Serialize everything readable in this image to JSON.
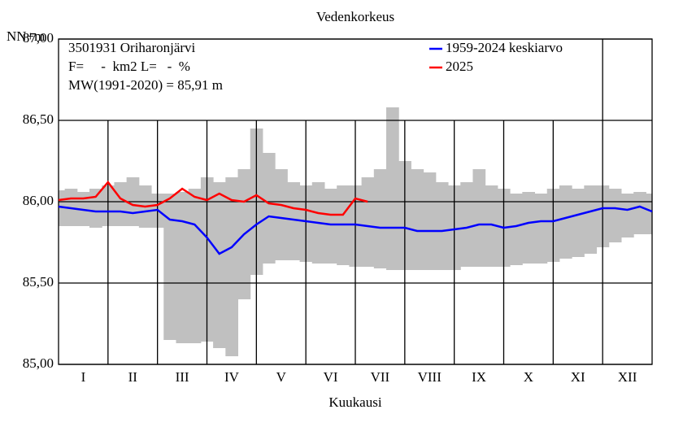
{
  "chart_data": {
    "type": "line",
    "title": "Vedenkorkeus",
    "ylabel": "NN+m",
    "xlabel": "Kuukausi",
    "info": [
      "3501931 Oriharonjärvi",
      "F=     -  km2 L=   -  %",
      "MW(1991-2020) = 85,91 m"
    ],
    "xlim": [
      0,
      12
    ],
    "xticks": [
      {
        "value": 0.5,
        "label": "I"
      },
      {
        "value": 1.5,
        "label": "II"
      },
      {
        "value": 2.5,
        "label": "III"
      },
      {
        "value": 3.5,
        "label": "IV"
      },
      {
        "value": 4.5,
        "label": "V"
      },
      {
        "value": 5.5,
        "label": "VI"
      },
      {
        "value": 6.5,
        "label": "VII"
      },
      {
        "value": 7.5,
        "label": "VIII"
      },
      {
        "value": 8.5,
        "label": "IX"
      },
      {
        "value": 9.5,
        "label": "X"
      },
      {
        "value": 10.5,
        "label": "XI"
      },
      {
        "value": 11.5,
        "label": "XII"
      }
    ],
    "ylim": [
      85,
      87
    ],
    "yticks": [
      {
        "value": 85,
        "label": "85,00"
      },
      {
        "value": 85.5,
        "label": "85,50"
      },
      {
        "value": 86,
        "label": "86,00"
      },
      {
        "value": 86.5,
        "label": "86,50"
      },
      {
        "value": 87,
        "label": "87,00"
      }
    ],
    "grid": true,
    "legend": "upper right",
    "x": [
      0,
      0.25,
      0.5,
      0.75,
      1,
      1.25,
      1.5,
      1.75,
      2,
      2.25,
      2.5,
      2.75,
      3,
      3.25,
      3.5,
      3.75,
      4,
      4.25,
      4.5,
      4.75,
      5,
      5.25,
      5.5,
      5.75,
      6,
      6.25,
      6.5,
      6.75,
      7,
      7.25,
      7.5,
      7.75,
      8,
      8.25,
      8.5,
      8.75,
      9,
      9.25,
      9.5,
      9.75,
      10,
      10.25,
      10.5,
      10.75,
      11,
      11.25,
      11.5,
      11.75,
      12
    ],
    "range": {
      "color": "#c0c0c0",
      "high": [
        86.07,
        86.08,
        86.06,
        86.08,
        86.1,
        86.12,
        86.15,
        86.1,
        86.05,
        86.05,
        86.06,
        86.08,
        86.15,
        86.12,
        86.15,
        86.2,
        86.45,
        86.3,
        86.2,
        86.12,
        86.1,
        86.12,
        86.08,
        86.1,
        86.1,
        86.15,
        86.2,
        86.58,
        86.25,
        86.2,
        86.18,
        86.12,
        86.1,
        86.12,
        86.2,
        86.1,
        86.08,
        86.05,
        86.06,
        86.05,
        86.08,
        86.1,
        86.08,
        86.1,
        86.1,
        86.08,
        86.05,
        86.06,
        86.05
      ],
      "low": [
        85.85,
        85.85,
        85.85,
        85.84,
        85.85,
        85.85,
        85.85,
        85.84,
        85.84,
        85.15,
        85.13,
        85.13,
        85.14,
        85.1,
        85.05,
        85.4,
        85.55,
        85.62,
        85.64,
        85.64,
        85.63,
        85.62,
        85.62,
        85.61,
        85.6,
        85.6,
        85.59,
        85.58,
        85.58,
        85.58,
        85.58,
        85.58,
        85.58,
        85.6,
        85.6,
        85.6,
        85.6,
        85.61,
        85.62,
        85.62,
        85.63,
        85.65,
        85.66,
        85.68,
        85.72,
        85.75,
        85.78,
        85.8,
        85.8
      ]
    },
    "series": [
      {
        "name": "1959-2024 keskiarvo",
        "color": "#0000ff",
        "values": [
          85.97,
          85.96,
          85.95,
          85.94,
          85.94,
          85.94,
          85.93,
          85.94,
          85.95,
          85.89,
          85.88,
          85.86,
          85.78,
          85.68,
          85.72,
          85.8,
          85.86,
          85.91,
          85.9,
          85.89,
          85.88,
          85.87,
          85.86,
          85.86,
          85.86,
          85.85,
          85.84,
          85.84,
          85.84,
          85.82,
          85.82,
          85.82,
          85.83,
          85.84,
          85.86,
          85.86,
          85.84,
          85.85,
          85.87,
          85.88,
          85.88,
          85.9,
          85.92,
          85.94,
          85.96,
          85.96,
          85.95,
          85.97,
          85.94
        ]
      },
      {
        "name": "2025",
        "color": "#ff0000",
        "values": [
          86.01,
          86.02,
          86.02,
          86.03,
          86.12,
          86.02,
          85.98,
          85.97,
          85.98,
          86.02,
          86.08,
          86.03,
          86.01,
          86.05,
          86.01,
          86.0,
          86.04,
          85.99,
          85.98,
          85.96,
          85.95,
          85.93,
          85.92,
          85.92,
          86.02,
          86.0,
          null,
          null,
          null,
          null,
          null,
          null,
          null,
          null,
          null,
          null,
          null,
          null,
          null,
          null,
          null,
          null,
          null,
          null,
          null,
          null,
          null,
          null,
          null
        ]
      }
    ]
  }
}
